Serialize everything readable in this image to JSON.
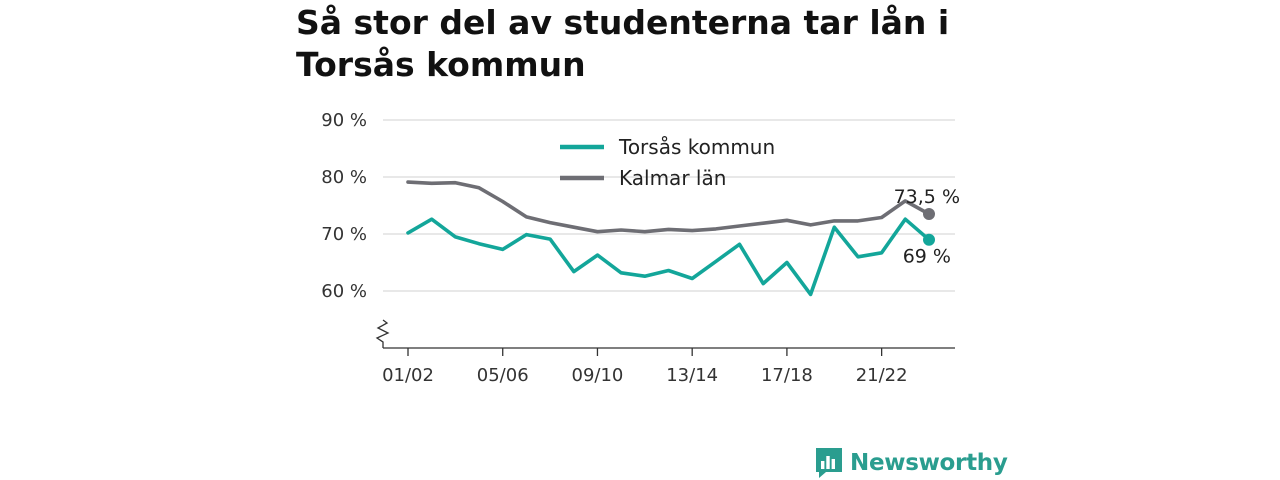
{
  "brand": {
    "name": "Newsworthy",
    "color": "#2a9d8f",
    "icon": "bar-chart-logo-icon"
  },
  "chart_data": {
    "type": "line",
    "title": "Så stor del av studenterna tar lån i Torsås kommun",
    "xlabel": "",
    "ylabel": "",
    "x": [
      "01/02",
      "02/03",
      "03/04",
      "04/05",
      "05/06",
      "06/07",
      "07/08",
      "08/09",
      "09/10",
      "10/11",
      "11/12",
      "12/13",
      "13/14",
      "14/15",
      "15/16",
      "16/17",
      "17/18",
      "18/19",
      "19/20",
      "20/21",
      "21/22",
      "22/23",
      "23/24"
    ],
    "x_tick_labels": [
      "01/02",
      "05/06",
      "09/10",
      "13/14",
      "17/18",
      "21/22"
    ],
    "y_tick_labels": [
      "90 %",
      "80 %",
      "70 %",
      "60 %"
    ],
    "y_ticks": [
      90,
      80,
      70,
      60
    ],
    "ylim": [
      50,
      90
    ],
    "y_axis_break": true,
    "grid": true,
    "legend_position": "top-center",
    "series": [
      {
        "name": "Torsås kommun",
        "color": "#13a69a",
        "values": [
          70.2,
          72.6,
          69.5,
          68.3,
          67.3,
          69.9,
          69.1,
          63.4,
          66.3,
          63.2,
          62.6,
          63.6,
          62.2,
          65.2,
          68.2,
          61.3,
          65.0,
          59.4,
          71.2,
          66.0,
          66.7,
          72.6,
          69.0
        ],
        "end_label": "69 %"
      },
      {
        "name": "Kalmar län",
        "color": "#6e6e74",
        "values": [
          79.1,
          78.9,
          79.0,
          78.1,
          75.7,
          73.0,
          72.0,
          71.2,
          70.4,
          70.7,
          70.4,
          70.8,
          70.6,
          70.9,
          71.4,
          71.9,
          72.4,
          71.6,
          72.3,
          72.3,
          72.9,
          75.8,
          73.5
        ],
        "end_label": "73,5 %"
      }
    ]
  }
}
